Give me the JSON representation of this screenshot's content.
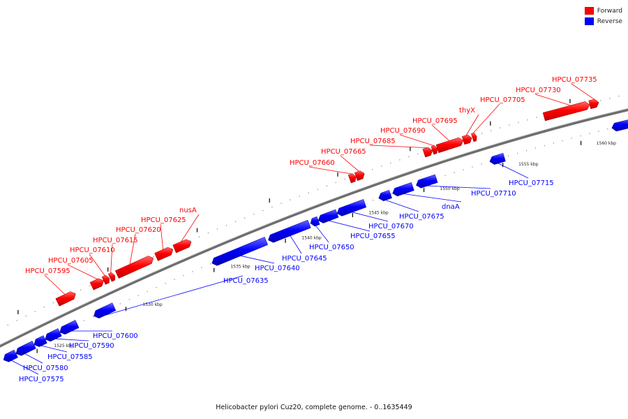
{
  "legend": {
    "forward": {
      "label": "Forward",
      "color": "#ff0000"
    },
    "reverse": {
      "label": "Reverse",
      "color": "#0000ff"
    }
  },
  "caption": "Helicobacter pylori Cuz20, complete genome. - 0..1635449",
  "tick_labels": [
    "1525 kbp",
    "1530 kbp",
    "1535 kbp",
    "1540 kbp",
    "1545 kbp",
    "1550 kbp",
    "1555 kbp",
    "1560 kbp"
  ],
  "genes": {
    "forward": [
      "HPCU_07595",
      "HPCU_07605",
      "HPCU_07610",
      "HPCU_07615",
      "HPCU_07620",
      "HPCU_07625",
      "nusA",
      "HPCU_07660",
      "HPCU_07665",
      "HPCU_07685",
      "HPCU_07690",
      "HPCU_07695",
      "thyX",
      "HPCU_07705",
      "HPCU_07730",
      "HPCU_07735"
    ],
    "reverse": [
      "HPCU_07575",
      "HPCU_07580",
      "HPCU_07585",
      "HPCU_07590",
      "HPCU_07600",
      "HPCU_07635",
      "HPCU_07640",
      "HPCU_07645",
      "HPCU_07650",
      "HPCU_07655",
      "HPCU_07670",
      "HPCU_07675",
      "dnaA",
      "HPCU_07710",
      "HPCU_07715"
    ]
  }
}
